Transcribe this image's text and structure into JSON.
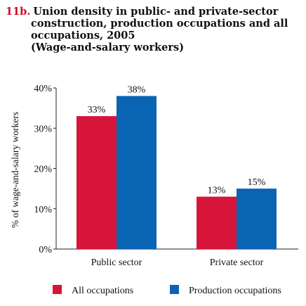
{
  "chart_data": {
    "type": "bar",
    "figure_number": "11b.",
    "title_lines": [
      "Union density in public- and private-sector",
      "construction, production occupations and all",
      "occupations, 2005"
    ],
    "subtitle": "(Wage-and-salary workers)",
    "categories": [
      "Public sector",
      "Private sector"
    ],
    "series": [
      {
        "name": "All occupations",
        "color": "#d7153a",
        "values": [
          33,
          13
        ],
        "labels": [
          "33%",
          "13%"
        ]
      },
      {
        "name": "Production occupations",
        "color": "#0a64b4",
        "values": [
          38,
          15
        ],
        "labels": [
          "38%",
          "15%"
        ]
      }
    ],
    "ylabel": "% of wage-and-salary workers",
    "ylim": [
      0,
      40
    ],
    "yticks": [
      0,
      10,
      20,
      30,
      40
    ],
    "ytick_labels": [
      "0%",
      "10%",
      "20%",
      "30%",
      "40%"
    ],
    "grid": false,
    "legend_position": "bottom"
  }
}
